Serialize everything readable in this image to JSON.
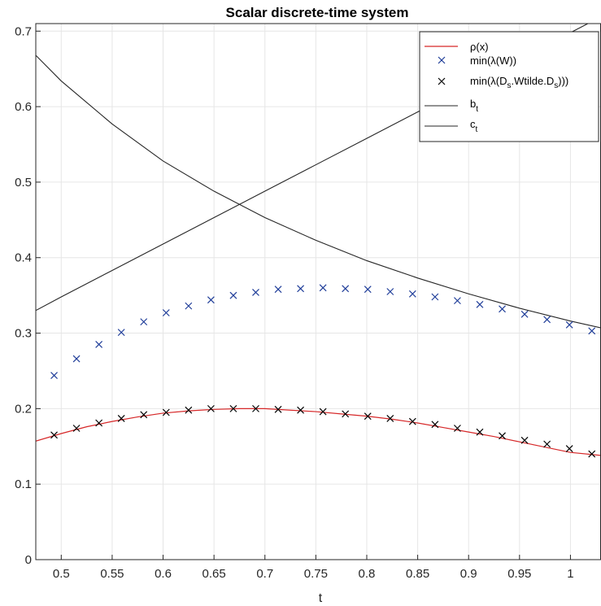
{
  "chart_data": {
    "type": "line",
    "title": "Scalar discrete-time system",
    "xlabel": "t",
    "ylabel": "",
    "xlim": [
      0.475,
      1.03
    ],
    "ylim": [
      0,
      0.71
    ],
    "xticks": [
      0.5,
      0.55,
      0.6,
      0.65,
      0.7,
      0.75,
      0.8,
      0.85,
      0.9,
      0.95,
      1
    ],
    "xtick_labels": [
      "0.5",
      "0.55",
      "0.6",
      "0.65",
      "0.7",
      "0.75",
      "0.8",
      "0.85",
      "0.9",
      "0.95",
      "1"
    ],
    "yticks": [
      0,
      0.1,
      0.2,
      0.3,
      0.4,
      0.5,
      0.6,
      0.7
    ],
    "ytick_labels": [
      "0",
      "0.1",
      "0.2",
      "0.3",
      "0.4",
      "0.5",
      "0.6",
      "0.7"
    ],
    "grid": true,
    "legend_position": "top-right",
    "legend": {
      "rho": {
        "main": "ρ(x)",
        "sub": ""
      },
      "minW": {
        "main": "min(λ(W))",
        "sub": ""
      },
      "minD": {
        "pre": "min(λ(D",
        "sub1": "s",
        "mid": ".Wtilde.D",
        "sub2": "s",
        "post": ")))"
      },
      "bt": {
        "main": "b",
        "sub": "t"
      },
      "ct": {
        "main": "c",
        "sub": "t"
      }
    },
    "colors": {
      "rho": "#d62728",
      "minW": "#1f3d99",
      "minD": "#000000",
      "bt": "#262626",
      "ct": "#262626"
    },
    "series": {
      "rho": {
        "x": [
          0.475,
          0.5,
          0.525,
          0.55,
          0.575,
          0.6,
          0.625,
          0.65,
          0.675,
          0.7,
          0.725,
          0.75,
          0.775,
          0.8,
          0.825,
          0.85,
          0.875,
          0.9,
          0.925,
          0.95,
          0.975,
          1.0,
          1.03
        ],
        "y": [
          0.157,
          0.167,
          0.176,
          0.183,
          0.189,
          0.194,
          0.197,
          0.199,
          0.2,
          0.2,
          0.198,
          0.196,
          0.193,
          0.19,
          0.186,
          0.181,
          0.175,
          0.169,
          0.163,
          0.156,
          0.149,
          0.142,
          0.138
        ]
      },
      "minW": {
        "x": [
          0.493,
          0.515,
          0.537,
          0.559,
          0.581,
          0.603,
          0.625,
          0.647,
          0.669,
          0.691,
          0.713,
          0.735,
          0.757,
          0.779,
          0.801,
          0.823,
          0.845,
          0.867,
          0.889,
          0.911,
          0.933,
          0.955,
          0.977,
          0.999,
          1.021
        ],
        "y": [
          0.244,
          0.266,
          0.285,
          0.301,
          0.315,
          0.327,
          0.336,
          0.344,
          0.35,
          0.354,
          0.358,
          0.359,
          0.36,
          0.359,
          0.358,
          0.355,
          0.352,
          0.348,
          0.343,
          0.338,
          0.332,
          0.325,
          0.318,
          0.311,
          0.303
        ]
      },
      "minD": {
        "x": [
          0.493,
          0.515,
          0.537,
          0.559,
          0.581,
          0.603,
          0.625,
          0.647,
          0.669,
          0.691,
          0.713,
          0.735,
          0.757,
          0.779,
          0.801,
          0.823,
          0.845,
          0.867,
          0.889,
          0.911,
          0.933,
          0.955,
          0.977,
          0.999,
          1.021
        ],
        "y": [
          0.165,
          0.174,
          0.181,
          0.187,
          0.192,
          0.195,
          0.198,
          0.2,
          0.2,
          0.2,
          0.199,
          0.198,
          0.196,
          0.193,
          0.19,
          0.187,
          0.183,
          0.179,
          0.174,
          0.169,
          0.164,
          0.158,
          0.153,
          0.147,
          0.14
        ]
      },
      "bt": {
        "x": [
          0.475,
          0.5,
          0.55,
          0.6,
          0.65,
          0.7,
          0.75,
          0.8,
          0.85,
          0.9,
          0.95,
          1.0,
          1.03
        ],
        "y": [
          0.33,
          0.348,
          0.383,
          0.418,
          0.453,
          0.488,
          0.523,
          0.558,
          0.593,
          0.628,
          0.663,
          0.698,
          0.719
        ]
      },
      "ct": {
        "x": [
          0.475,
          0.5,
          0.55,
          0.6,
          0.65,
          0.7,
          0.75,
          0.8,
          0.85,
          0.9,
          0.95,
          1.0,
          1.03
        ],
        "y": [
          0.668,
          0.634,
          0.577,
          0.528,
          0.488,
          0.453,
          0.423,
          0.396,
          0.373,
          0.352,
          0.333,
          0.316,
          0.307
        ]
      }
    }
  }
}
